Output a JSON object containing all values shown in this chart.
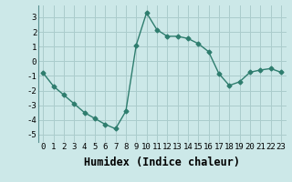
{
  "x": [
    0,
    1,
    2,
    3,
    4,
    5,
    6,
    7,
    8,
    9,
    10,
    11,
    12,
    13,
    14,
    15,
    16,
    17,
    18,
    19,
    20,
    21,
    22,
    23
  ],
  "y": [
    -0.8,
    -1.7,
    -2.3,
    -2.9,
    -3.5,
    -3.9,
    -4.3,
    -4.6,
    -3.4,
    1.1,
    3.3,
    2.15,
    1.7,
    1.7,
    1.55,
    1.2,
    0.65,
    -0.85,
    -1.65,
    -1.4,
    -0.75,
    -0.6,
    -0.5,
    -0.75
  ],
  "line_color": "#2e7d6e",
  "marker": "D",
  "marker_size": 2.5,
  "line_width": 1.0,
  "xlabel": "Humidex (Indice chaleur)",
  "xlim": [
    -0.5,
    23.5
  ],
  "ylim": [
    -5.5,
    3.8
  ],
  "yticks": [
    -5,
    -4,
    -3,
    -2,
    -1,
    0,
    1,
    2,
    3
  ],
  "xticks": [
    0,
    1,
    2,
    3,
    4,
    5,
    6,
    7,
    8,
    9,
    10,
    11,
    12,
    13,
    14,
    15,
    16,
    17,
    18,
    19,
    20,
    21,
    22,
    23
  ],
  "bg_color": "#cce8e8",
  "grid_color": "#aacccc",
  "tick_fontsize": 6.5,
  "xlabel_fontsize": 8.5
}
